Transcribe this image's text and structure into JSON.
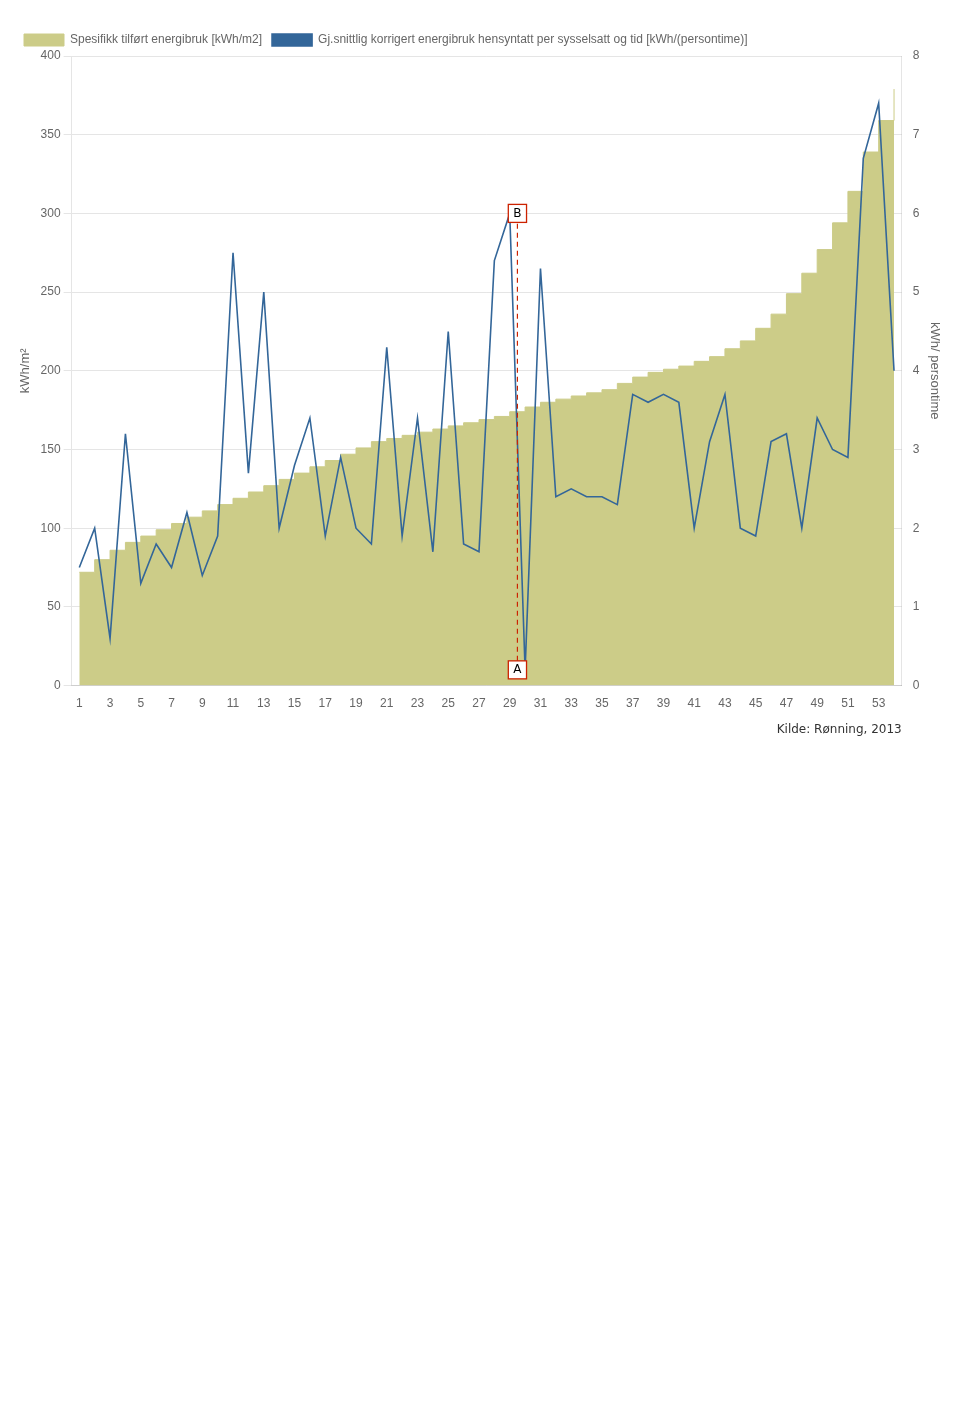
{
  "chart_data": {
    "type": "line",
    "x": [
      1,
      2,
      3,
      4,
      5,
      6,
      7,
      8,
      9,
      10,
      11,
      12,
      13,
      14,
      15,
      16,
      17,
      18,
      19,
      20,
      21,
      22,
      23,
      24,
      25,
      26,
      27,
      28,
      29,
      30,
      31,
      32,
      33,
      34,
      35,
      36,
      37,
      38,
      39,
      40,
      41,
      42,
      43,
      44,
      45,
      46,
      47,
      48,
      49,
      50,
      51,
      52,
      53,
      54
    ],
    "series": [
      {
        "name": "Spesifikk tilført energibruk [kWh/m2]",
        "type": "area",
        "line_style": "step",
        "color": "#CCCC88",
        "values": [
          72,
          80,
          86,
          91,
          95,
          99,
          103,
          107,
          111,
          115,
          119,
          123,
          127,
          131,
          135,
          139,
          143,
          147,
          151,
          155,
          157,
          159,
          161,
          163,
          165,
          167,
          169,
          171,
          174,
          177,
          180,
          182,
          184,
          186,
          188,
          192,
          196,
          199,
          201,
          203,
          206,
          209,
          214,
          219,
          227,
          236,
          249,
          262,
          277,
          294,
          314,
          339,
          359,
          379
        ]
      },
      {
        "name": "Gj.snittlig korrigert energibruk hensyntatt per sysselsatt og tid [kWh/(persontime)]",
        "type": "line",
        "color": "#336699",
        "axis": "y2",
        "values": [
          1.5,
          2.0,
          0.6,
          3.2,
          1.3,
          1.8,
          1.5,
          2.2,
          1.4,
          1.9,
          5.5,
          2.7,
          5.0,
          2.0,
          2.8,
          3.4,
          1.9,
          2.9,
          2.0,
          1.8,
          4.3,
          1.9,
          3.4,
          1.7,
          4.5,
          1.8,
          1.7,
          5.4,
          6.0,
          0.2,
          5.3,
          2.4,
          2.5,
          2.4,
          2.4,
          2.3,
          3.7,
          3.6,
          3.7,
          3.6,
          2.0,
          3.1,
          3.7,
          2.0,
          1.9,
          3.1,
          3.2,
          2.0,
          3.4,
          3.0,
          2.9,
          6.7,
          7.4,
          4.0
        ]
      }
    ],
    "xlim": [
      0.5,
      54.5
    ],
    "xticks": [
      1,
      3,
      5,
      7,
      9,
      11,
      13,
      15,
      17,
      19,
      21,
      23,
      25,
      27,
      29,
      31,
      33,
      35,
      37,
      39,
      41,
      43,
      45,
      47,
      49,
      51,
      53
    ],
    "ylabel": "kWh/m²",
    "ylim": [
      0,
      400
    ],
    "yticks": [
      0,
      50,
      100,
      150,
      200,
      250,
      300,
      350,
      400
    ],
    "y2label": "kWh/ persontime",
    "y2lim": [
      0,
      8
    ],
    "y2ticks": [
      0,
      1,
      2,
      3,
      4,
      5,
      6,
      7,
      8
    ],
    "grid": true,
    "legend": "upper left",
    "annotations": [
      {
        "text": "A",
        "x": 29.5,
        "y": 0.2,
        "axis": "y2",
        "color": "#CC2200"
      },
      {
        "text": "B",
        "x": 29.5,
        "y": 6.0,
        "axis": "y2",
        "color": "#CC2200"
      },
      {
        "text": "Kilde: Rønning, 2013"
      }
    ],
    "annotation_lines": [
      {
        "x": [
          29.5,
          29.5
        ],
        "y": [
          0.2,
          6.0
        ],
        "axis": "y2",
        "color": "#CC2200",
        "line_style": "dashed"
      }
    ]
  }
}
